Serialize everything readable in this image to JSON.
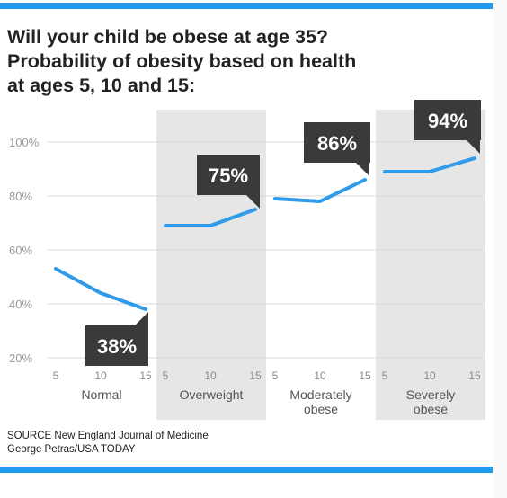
{
  "title_lines": [
    "Will your child be obese at age 35?",
    "Probability of obesity based on health",
    "at ages 5, 10 and 15:"
  ],
  "source_lines": [
    "SOURCE New England Journal of Medicine",
    "George Petras/USA TODAY"
  ],
  "colors": {
    "line": "#2f9be9",
    "rule": "#1f9bef",
    "shade": "#e6e6e6",
    "callout": "#3a3a3a",
    "callout_text": "#ffffff"
  },
  "chart_data": {
    "type": "line",
    "title": "Will your child be obese at age 35? Probability of obesity based on health at ages 5, 10 and 15:",
    "ylim": [
      20,
      100
    ],
    "yticks": [
      20,
      40,
      60,
      80,
      100
    ],
    "ytick_labels": [
      "20%",
      "40%",
      "60%",
      "80%",
      "100%"
    ],
    "xtick_labels": [
      "5",
      "10",
      "15"
    ],
    "grid": true,
    "groups": [
      {
        "name": "Normal",
        "label_lines": [
          "Normal"
        ],
        "x": [
          5,
          10,
          15
        ],
        "values": [
          53,
          44,
          38
        ],
        "callout": "38%",
        "shaded": false
      },
      {
        "name": "Overweight",
        "label_lines": [
          "Overweight"
        ],
        "x": [
          5,
          10,
          15
        ],
        "values": [
          69,
          69,
          75
        ],
        "callout": "75%",
        "shaded": true
      },
      {
        "name": "Moderately obese",
        "label_lines": [
          "Moderately",
          "obese"
        ],
        "x": [
          5,
          10,
          15
        ],
        "values": [
          79,
          78,
          86
        ],
        "callout": "86%",
        "shaded": false
      },
      {
        "name": "Severely obese",
        "label_lines": [
          "Severely",
          "obese"
        ],
        "x": [
          5,
          10,
          15
        ],
        "values": [
          89,
          89,
          94
        ],
        "callout": "94%",
        "shaded": true
      }
    ]
  }
}
